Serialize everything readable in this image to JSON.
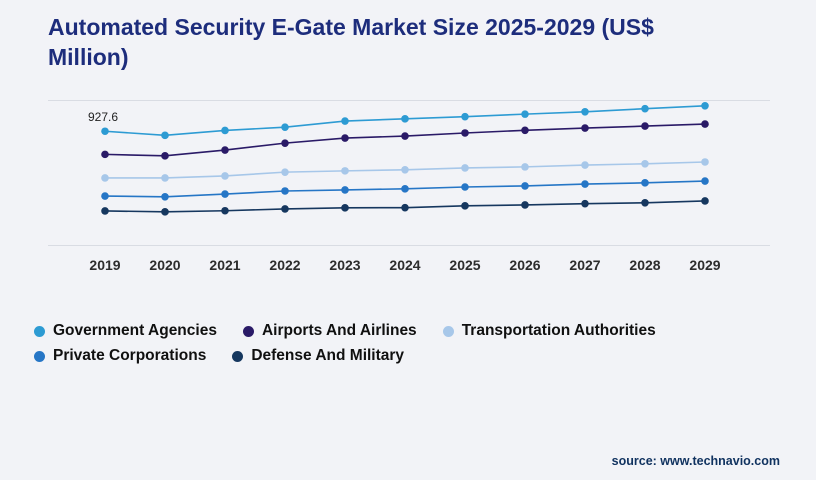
{
  "title": "Automated Security E-Gate Market Size 2025-2029 (US$ Million)",
  "source": "source: www.technavio.com",
  "chart_data": {
    "type": "line",
    "title": "Automated Security E-Gate Market Size 2025-2029 (US$ Million)",
    "xlabel": "",
    "ylabel": "US$ Million",
    "x": [
      2019,
      2020,
      2021,
      2022,
      2023,
      2024,
      2025,
      2026,
      2027,
      2028,
      2029
    ],
    "ylim": [
      300,
      1100
    ],
    "grid": "horizontal-top-bottom",
    "legend_position": "bottom-left",
    "series": [
      {
        "name": "Government Agencies",
        "color": "#2D9BD3",
        "values": [
          927.6,
          905,
          932,
          950,
          984,
          996,
          1008,
          1022,
          1035,
          1052,
          1068
        ]
      },
      {
        "name": "Airports And Airlines",
        "color": "#2A1A67",
        "values": [
          800,
          792,
          824,
          862,
          890,
          901,
          918,
          933,
          945,
          956,
          967
        ]
      },
      {
        "name": "Transportation Authorities",
        "color": "#A7C7E9",
        "values": [
          670,
          670,
          681,
          702,
          709,
          715,
          725,
          731,
          741,
          748,
          758
        ]
      },
      {
        "name": "Private Corporations",
        "color": "#2676C6",
        "values": [
          570,
          566,
          581,
          598,
          604,
          610,
          620,
          626,
          636,
          643,
          653
        ]
      },
      {
        "name": "Defense And Military",
        "color": "#16375F",
        "values": [
          488,
          483,
          489,
          499,
          505,
          506,
          516,
          521,
          528,
          533,
          543
        ]
      }
    ],
    "data_label": {
      "series": "Government Agencies",
      "year": 2019,
      "text": "927.6"
    }
  }
}
